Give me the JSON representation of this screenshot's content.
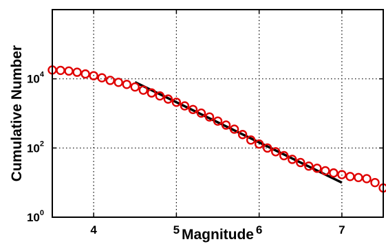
{
  "chart_data": {
    "type": "scatter",
    "title": "",
    "xlabel": "Magnitude",
    "ylabel": "Cumulative Number",
    "xlim": [
      3.5,
      7.5
    ],
    "ylim": [
      1,
      1000000
    ],
    "y_scale": "log",
    "grid": true,
    "grid_style": "dotted",
    "x_ticks": [
      {
        "value": 4,
        "label": "4"
      },
      {
        "value": 5,
        "label": "5"
      },
      {
        "value": 6,
        "label": "6"
      },
      {
        "value": 7,
        "label": "7"
      }
    ],
    "y_ticks": [
      {
        "value": 1,
        "base": "10",
        "exp": "0"
      },
      {
        "value": 100,
        "base": "10",
        "exp": "2"
      },
      {
        "value": 10000,
        "base": "10",
        "exp": "4"
      }
    ],
    "series": [
      {
        "kind": "scatter",
        "marker": "open-circle",
        "color": "#e00000",
        "x": [
          3.5,
          3.6,
          3.7,
          3.8,
          3.9,
          4.0,
          4.1,
          4.2,
          4.3,
          4.4,
          4.5,
          4.6,
          4.7,
          4.8,
          4.9,
          5.0,
          5.1,
          5.2,
          5.3,
          5.4,
          5.5,
          5.6,
          5.7,
          5.8,
          5.9,
          6.0,
          6.1,
          6.2,
          6.3,
          6.4,
          6.5,
          6.6,
          6.7,
          6.8,
          6.9,
          7.0,
          7.1,
          7.2,
          7.3,
          7.4,
          7.5
        ],
        "y": [
          18000,
          17500,
          16800,
          15500,
          13800,
          12300,
          10700,
          9000,
          7900,
          6900,
          5800,
          4700,
          3900,
          3200,
          2600,
          2100,
          1650,
          1300,
          1020,
          790,
          600,
          460,
          350,
          245,
          170,
          130,
          100,
          78,
          60,
          47,
          38,
          30,
          26,
          22,
          19,
          17,
          15,
          14,
          13,
          10,
          7
        ]
      },
      {
        "kind": "line",
        "color": "#000000",
        "x": [
          4.5,
          7.0
        ],
        "y": [
          8000,
          10
        ]
      }
    ]
  }
}
